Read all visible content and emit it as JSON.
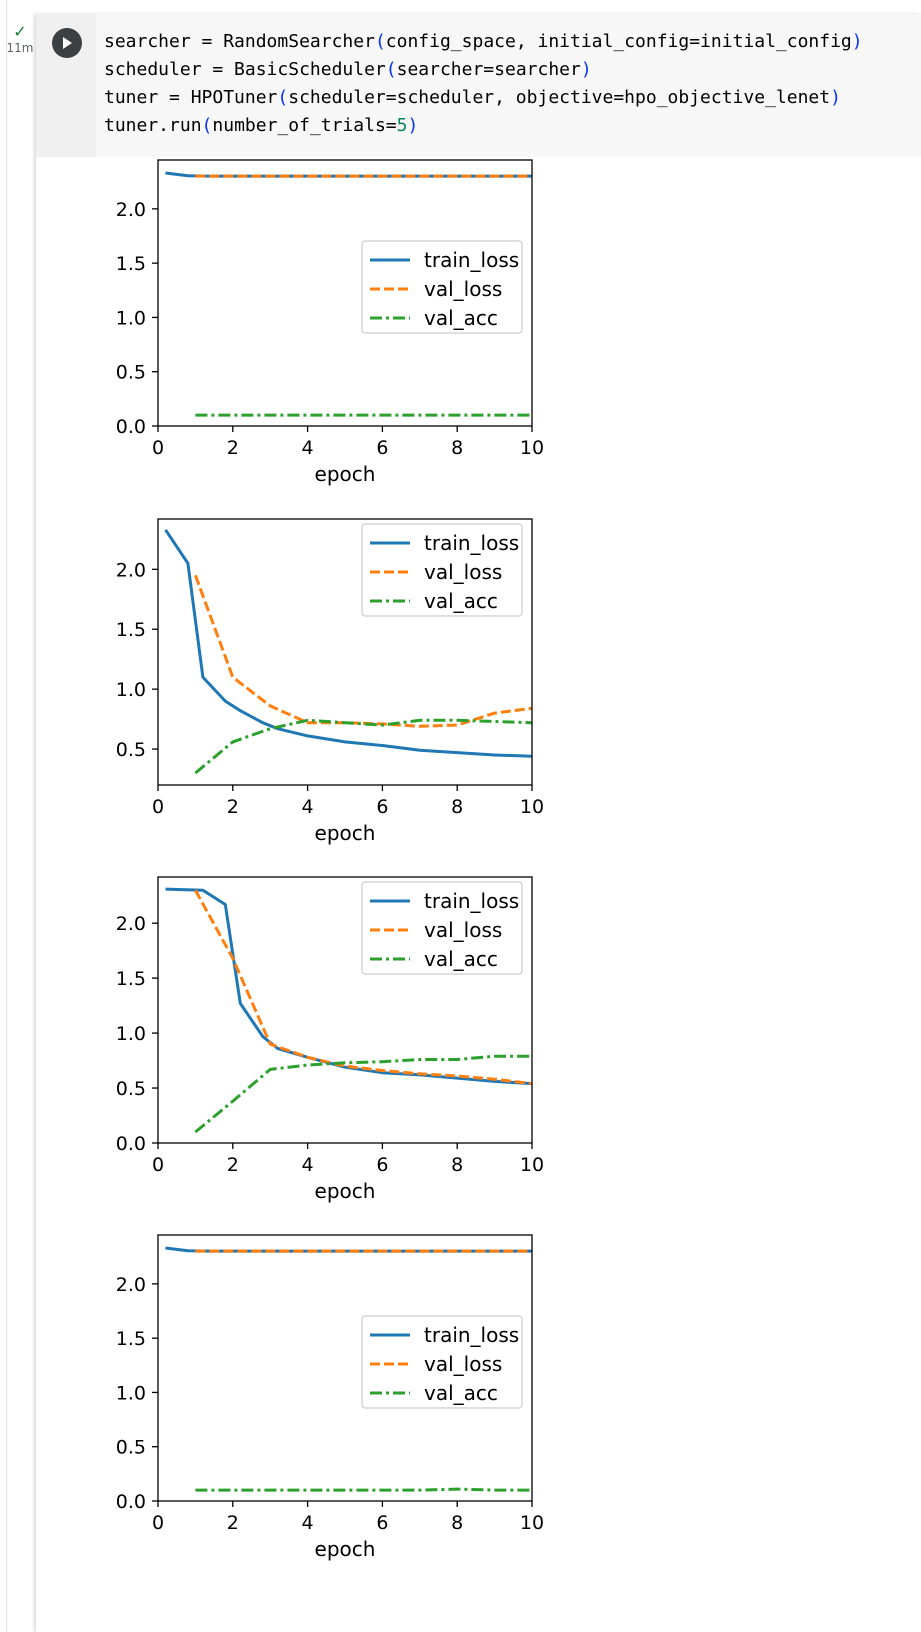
{
  "cell": {
    "status_icon": "check-icon",
    "status_time": "11m",
    "run_icon": "play-icon",
    "code_lines": [
      [
        [
          "searcher = RandomSearcher",
          "t"
        ],
        [
          "(",
          "p"
        ],
        [
          "config_space, initial_config=initial_config",
          "t"
        ],
        [
          ")",
          "p"
        ]
      ],
      [
        [
          "scheduler = BasicScheduler",
          "t"
        ],
        [
          "(",
          "p"
        ],
        [
          "searcher=searcher",
          "t"
        ],
        [
          ")",
          "p"
        ]
      ],
      [
        [
          "tuner = HPOTuner",
          "t"
        ],
        [
          "(",
          "p"
        ],
        [
          "scheduler=scheduler, objective=hpo_objective_lenet",
          "t"
        ],
        [
          ")",
          "p"
        ]
      ],
      [
        [
          "tuner.run",
          "t"
        ],
        [
          "(",
          "p"
        ],
        [
          "number_of_trials=",
          "t"
        ],
        [
          "5",
          "n"
        ],
        [
          ")",
          "p"
        ]
      ]
    ]
  },
  "colors": {
    "train_loss": "#1f77b4",
    "val_loss": "#ff7f0e",
    "val_acc": "#2ca02c"
  },
  "chart_data": [
    {
      "type": "line",
      "xlabel": "epoch",
      "xlim": [
        0,
        10
      ],
      "ylim": [
        0,
        2.45
      ],
      "xticks": [
        0,
        2,
        4,
        6,
        8,
        10
      ],
      "yticks": [
        0.0,
        0.5,
        1.0,
        1.5,
        2.0
      ],
      "ytick_labels": [
        "0.0",
        "0.5",
        "1.0",
        "1.5",
        "2.0"
      ],
      "legend_loc": "center-right",
      "series": [
        {
          "name": "train_loss",
          "style": "solid",
          "x": [
            0.2,
            0.8,
            1.4,
            2,
            4,
            6,
            8,
            10
          ],
          "y": [
            2.33,
            2.305,
            2.302,
            2.302,
            2.302,
            2.302,
            2.302,
            2.302
          ]
        },
        {
          "name": "val_loss",
          "style": "dashed",
          "x": [
            1,
            2,
            4,
            6,
            8,
            10
          ],
          "y": [
            2.302,
            2.302,
            2.302,
            2.302,
            2.302,
            2.302
          ]
        },
        {
          "name": "val_acc",
          "style": "dashdot",
          "x": [
            1,
            2,
            4,
            6,
            8,
            10
          ],
          "y": [
            0.1,
            0.1,
            0.1,
            0.1,
            0.1,
            0.1
          ]
        }
      ]
    },
    {
      "type": "line",
      "xlabel": "epoch",
      "xlim": [
        0,
        10
      ],
      "ylim": [
        0.2,
        2.42
      ],
      "xticks": [
        0,
        2,
        4,
        6,
        8,
        10
      ],
      "yticks": [
        0.5,
        1.0,
        1.5,
        2.0
      ],
      "ytick_labels": [
        "0.5",
        "1.0",
        "1.5",
        "2.0"
      ],
      "legend_loc": "upper-right",
      "series": [
        {
          "name": "train_loss",
          "style": "solid",
          "x": [
            0.2,
            0.8,
            1.2,
            1.8,
            2.2,
            2.8,
            3.2,
            4,
            5,
            6,
            7,
            8,
            9,
            10
          ],
          "y": [
            2.33,
            2.05,
            1.1,
            0.9,
            0.82,
            0.72,
            0.67,
            0.61,
            0.56,
            0.53,
            0.49,
            0.47,
            0.45,
            0.44
          ]
        },
        {
          "name": "val_loss",
          "style": "dashed",
          "x": [
            1,
            2,
            3,
            4,
            5,
            6,
            7,
            8,
            9,
            10
          ],
          "y": [
            1.95,
            1.1,
            0.86,
            0.72,
            0.72,
            0.71,
            0.69,
            0.7,
            0.8,
            0.84
          ]
        },
        {
          "name": "val_acc",
          "style": "dashdot",
          "x": [
            1,
            2,
            3,
            4,
            5,
            6,
            7,
            8,
            9,
            10
          ],
          "y": [
            0.3,
            0.56,
            0.67,
            0.74,
            0.72,
            0.7,
            0.74,
            0.74,
            0.73,
            0.72
          ]
        }
      ]
    },
    {
      "type": "line",
      "xlabel": "epoch",
      "xlim": [
        0,
        10
      ],
      "ylim": [
        0,
        2.42
      ],
      "xticks": [
        0,
        2,
        4,
        6,
        8,
        10
      ],
      "yticks": [
        0.0,
        0.5,
        1.0,
        1.5,
        2.0
      ],
      "ytick_labels": [
        "0.0",
        "0.5",
        "1.0",
        "1.5",
        "2.0"
      ],
      "legend_loc": "upper-right",
      "series": [
        {
          "name": "train_loss",
          "style": "solid",
          "x": [
            0.2,
            1.2,
            1.8,
            2.2,
            2.8,
            3.2,
            4,
            5,
            6,
            7,
            8,
            9,
            10
          ],
          "y": [
            2.31,
            2.3,
            2.17,
            1.27,
            0.97,
            0.86,
            0.78,
            0.69,
            0.64,
            0.62,
            0.59,
            0.56,
            0.54
          ]
        },
        {
          "name": "val_loss",
          "style": "dashed",
          "x": [
            1,
            2,
            3,
            4,
            5,
            6,
            7,
            8,
            9,
            10
          ],
          "y": [
            2.3,
            1.68,
            0.9,
            0.78,
            0.7,
            0.66,
            0.63,
            0.61,
            0.58,
            0.54
          ]
        },
        {
          "name": "val_acc",
          "style": "dashdot",
          "x": [
            1,
            2,
            3,
            4,
            5,
            6,
            7,
            8,
            9,
            10
          ],
          "y": [
            0.1,
            0.38,
            0.67,
            0.71,
            0.73,
            0.74,
            0.76,
            0.76,
            0.79,
            0.79
          ]
        }
      ]
    },
    {
      "type": "line",
      "xlabel": "epoch",
      "xlim": [
        0,
        10
      ],
      "ylim": [
        0,
        2.45
      ],
      "xticks": [
        0,
        2,
        4,
        6,
        8,
        10
      ],
      "yticks": [
        0.0,
        0.5,
        1.0,
        1.5,
        2.0
      ],
      "ytick_labels": [
        "0.0",
        "0.5",
        "1.0",
        "1.5",
        "2.0"
      ],
      "legend_loc": "center-right",
      "series": [
        {
          "name": "train_loss",
          "style": "solid",
          "x": [
            0.2,
            0.8,
            1.4,
            2,
            4,
            6,
            8,
            10
          ],
          "y": [
            2.33,
            2.305,
            2.302,
            2.302,
            2.302,
            2.302,
            2.302,
            2.302
          ]
        },
        {
          "name": "val_loss",
          "style": "dashed",
          "x": [
            1,
            2,
            4,
            6,
            8,
            10
          ],
          "y": [
            2.302,
            2.302,
            2.302,
            2.302,
            2.302,
            2.302
          ]
        },
        {
          "name": "val_acc",
          "style": "dashdot",
          "x": [
            1,
            2,
            4,
            5,
            6,
            7,
            8,
            9,
            10
          ],
          "y": [
            0.1,
            0.1,
            0.1,
            0.1,
            0.1,
            0.1,
            0.11,
            0.1,
            0.1
          ]
        }
      ]
    }
  ]
}
